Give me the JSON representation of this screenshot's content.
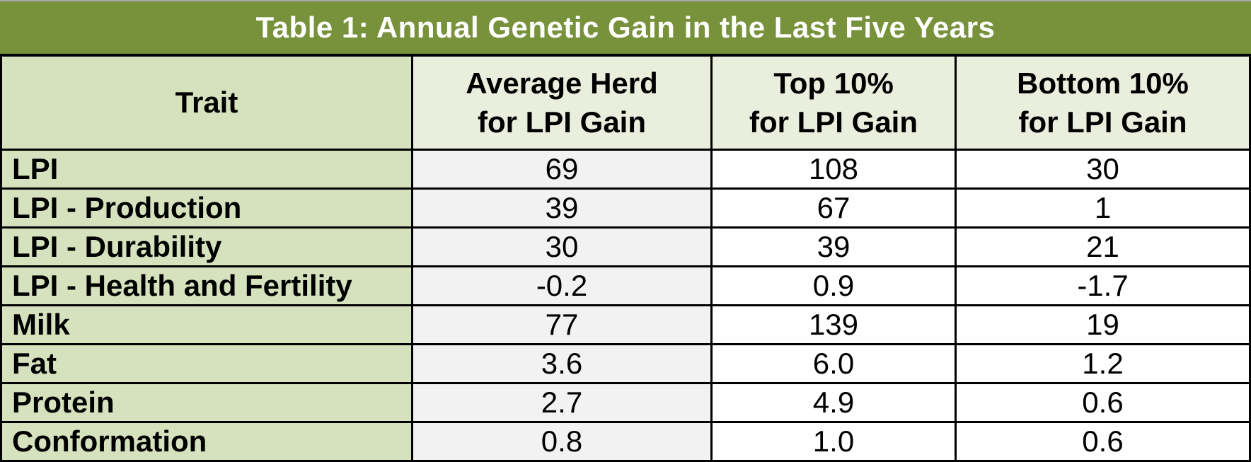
{
  "chart_data": {
    "type": "table",
    "title": "Table 1: Annual Genetic Gain in the Last Five Years",
    "columns": [
      {
        "label": "Trait"
      },
      {
        "line1": "Average Herd",
        "line2": "for LPI Gain"
      },
      {
        "line1": "Top 10%",
        "line2": "for LPI Gain"
      },
      {
        "line1": "Bottom 10%",
        "line2": "for LPI Gain"
      }
    ],
    "rows": [
      {
        "trait": "LPI",
        "values": [
          "69",
          "108",
          "30"
        ]
      },
      {
        "trait": "LPI - Production",
        "values": [
          "39",
          "67",
          "1"
        ]
      },
      {
        "trait": "LPI - Durability",
        "values": [
          "30",
          "39",
          "21"
        ]
      },
      {
        "trait": "LPI - Health and Fertility",
        "values": [
          "-0.2",
          "0.9",
          "-1.7"
        ]
      },
      {
        "trait": "Milk",
        "values": [
          "77",
          "139",
          "19"
        ]
      },
      {
        "trait": "Fat",
        "values": [
          "3.6",
          "6.0",
          "1.2"
        ]
      },
      {
        "trait": "Protein",
        "values": [
          "2.7",
          "4.9",
          "0.6"
        ]
      },
      {
        "trait": "Conformation",
        "values": [
          "0.8",
          "1.0",
          "0.6"
        ]
      }
    ]
  },
  "colors": {
    "title_bg": "#78923C",
    "title_fg": "#FFFFFF",
    "green_cell": "#D6E1BD",
    "header_light": "#EAEEDC",
    "avg_bg": "#F2F2F2",
    "white_bg": "#FFFFFF",
    "border": "#000000",
    "top_hairline": "#A7A7A7"
  }
}
